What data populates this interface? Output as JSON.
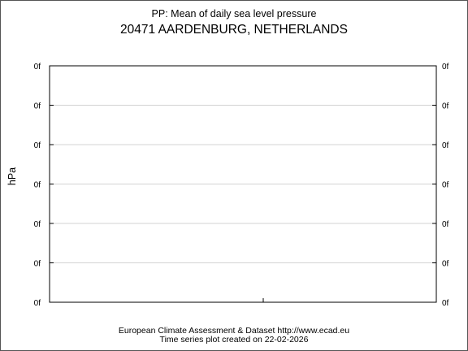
{
  "chart_data": {
    "type": "line",
    "title": "PP: Mean of daily sea level pressure",
    "subtitle": "20471 AARDENBURG, NETHERLANDS",
    "xlabel": "",
    "ylabel": "hPa",
    "y_tick_labels": [
      "0f",
      "0f",
      "0f",
      "0f",
      "0f",
      "0f",
      "0f"
    ],
    "series": [],
    "grid": true,
    "legend": "none",
    "colors": {
      "grid": "#d3d3d3",
      "axis": "#000000"
    }
  },
  "footer": {
    "line1": "European Climate Assessment & Dataset  http://www.ecad.eu",
    "line2": "Time series plot created on 22-02-2026"
  }
}
